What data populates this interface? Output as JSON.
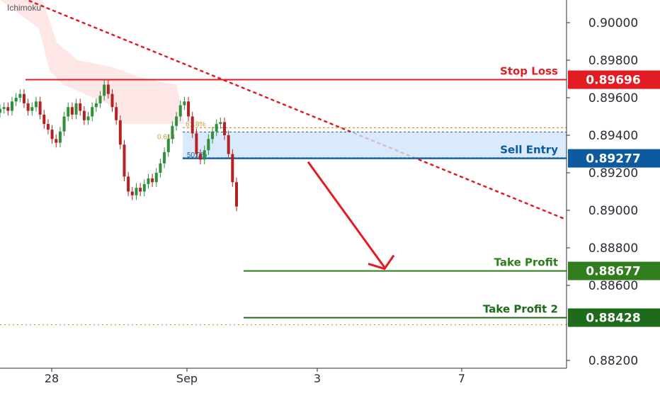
{
  "indicator_label": "Ichimoku",
  "colors": {
    "stop_loss": "#e31b23",
    "sell_entry": "#0d5a9e",
    "take_profit": "#2f7d1c",
    "take_profit_2": "#1e6b1c",
    "fib": "#c99a3a",
    "cloud": "#fde3e3",
    "up_candle": "#2f8f3a",
    "down_candle": "#b22222"
  },
  "chart_data": {
    "type": "candlestick",
    "title": "",
    "ylim": [
      0.881,
      0.902
    ],
    "y_ticks": [
      "0.90000",
      "0.89800",
      "0.89600",
      "0.89400",
      "0.89200",
      "0.89000",
      "0.88800",
      "0.88600",
      "0.88200"
    ],
    "x_tick_labels": [
      "28",
      "Sep",
      "3",
      "7"
    ],
    "levels": [
      {
        "label": "Stop Loss",
        "value": 0.89696,
        "tag": "0.89696"
      },
      {
        "label": "Sell Entry",
        "value": 0.89277,
        "tag": "0.89277"
      },
      {
        "label": "Take Profit",
        "value": 0.88677,
        "tag": "0.88677"
      },
      {
        "label": "Take Profit 2",
        "value": 0.88428,
        "tag": "0.88428"
      }
    ],
    "fib_labels": {
      "level_618": "61.8%",
      "left_618": "0.618",
      "lower": "50.0%"
    },
    "fib_levels": [
      0.8944,
      0.8941,
      0.8928
    ],
    "extra_dotted_level": 0.8839,
    "closes": [
      0.8954,
      0.8955,
      0.8953,
      0.8958,
      0.896,
      0.8962,
      0.8957,
      0.8953,
      0.8955,
      0.8958,
      0.8951,
      0.8946,
      0.8943,
      0.8938,
      0.8936,
      0.8942,
      0.895,
      0.8955,
      0.8951,
      0.8957,
      0.8953,
      0.8948,
      0.895,
      0.8955,
      0.8957,
      0.8961,
      0.8967,
      0.8962,
      0.8955,
      0.8948,
      0.8935,
      0.8918,
      0.891,
      0.8908,
      0.8912,
      0.891,
      0.8914,
      0.8917,
      0.8915,
      0.892,
      0.8925,
      0.8931,
      0.8938,
      0.8945,
      0.895,
      0.8956,
      0.8958,
      0.895,
      0.8941,
      0.893,
      0.8927,
      0.8932,
      0.8938,
      0.8942,
      0.8946,
      0.8947,
      0.894,
      0.893,
      0.8915,
      0.8902
    ],
    "trendline": [
      [
        0.9018,
        0.0
      ],
      [
        0.8895,
        1.0
      ]
    ]
  }
}
